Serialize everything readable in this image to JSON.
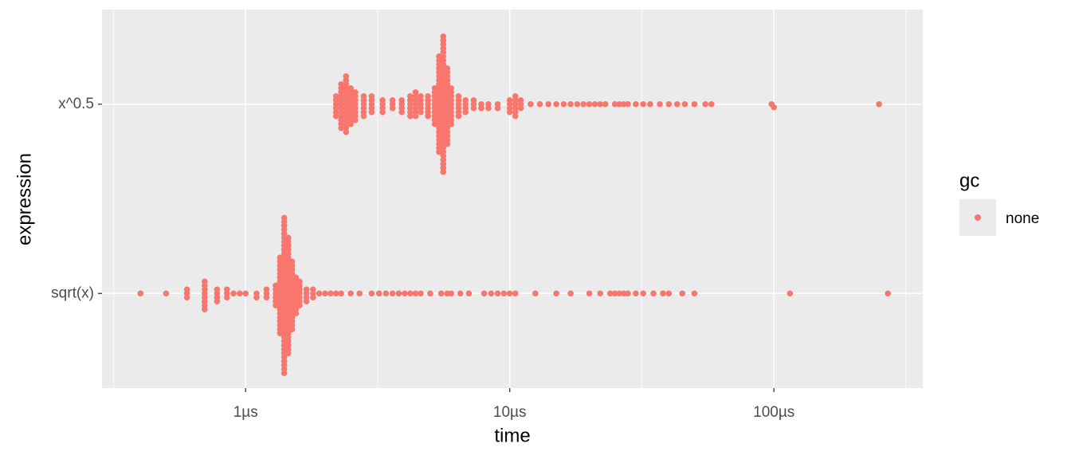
{
  "chart_data": {
    "type": "beeswarm",
    "x_label": "time",
    "y_label": "expression",
    "categories": [
      "sqrt(x)",
      "x^0.5"
    ],
    "legend_title": "gc",
    "xlog": true,
    "xlim": [
      0.286,
      366
    ],
    "xticks": [
      {
        "value": 1,
        "label": "1µs"
      },
      {
        "value": 10,
        "label": "10µs"
      },
      {
        "value": 100,
        "label": "100µs"
      }
    ],
    "xminorticks": [
      0.316,
      3.16,
      31.6,
      316
    ],
    "grid": true,
    "series": [
      {
        "name": "none",
        "color": "#F8766D",
        "values": [
          [
            0.4,
            0.5,
            0.6,
            0.6,
            0.6,
            0.7,
            0.7,
            0.7,
            0.7,
            0.7,
            0.7,
            0.7,
            0.7,
            0.78,
            0.78,
            0.78,
            0.78,
            0.85,
            0.85,
            0.85,
            0.9,
            0.95,
            1.0,
            1.1,
            1.1,
            1.2,
            1.2,
            1.2,
            1.3,
            1.3,
            1.3,
            1.3,
            1.3,
            1.3,
            1.35,
            1.35,
            1.35,
            1.35,
            1.35,
            1.35,
            1.35,
            1.35,
            1.35,
            1.35,
            1.35,
            1.35,
            1.35,
            1.35,
            1.35,
            1.35,
            1.35,
            1.35,
            1.35,
            1.35,
            1.4,
            1.4,
            1.4,
            1.4,
            1.4,
            1.4,
            1.4,
            1.4,
            1.4,
            1.4,
            1.4,
            1.4,
            1.4,
            1.4,
            1.4,
            1.4,
            1.4,
            1.4,
            1.4,
            1.4,
            1.4,
            1.4,
            1.4,
            1.4,
            1.4,
            1.4,
            1.4,
            1.4,
            1.4,
            1.4,
            1.4,
            1.4,
            1.4,
            1.4,
            1.4,
            1.4,
            1.4,
            1.4,
            1.4,
            1.4,
            1.45,
            1.45,
            1.45,
            1.45,
            1.45,
            1.45,
            1.45,
            1.45,
            1.45,
            1.45,
            1.45,
            1.45,
            1.45,
            1.45,
            1.45,
            1.45,
            1.45,
            1.45,
            1.45,
            1.45,
            1.45,
            1.45,
            1.45,
            1.45,
            1.45,
            1.45,
            1.45,
            1.45,
            1.45,
            1.45,
            1.5,
            1.5,
            1.5,
            1.5,
            1.5,
            1.5,
            1.5,
            1.5,
            1.5,
            1.5,
            1.5,
            1.5,
            1.5,
            1.5,
            1.5,
            1.5,
            1.5,
            1.5,
            1.55,
            1.55,
            1.55,
            1.55,
            1.55,
            1.55,
            1.55,
            1.55,
            1.55,
            1.55,
            1.6,
            1.6,
            1.6,
            1.6,
            1.6,
            1.6,
            1.6,
            1.7,
            1.7,
            1.7,
            1.7,
            1.8,
            1.8,
            1.8,
            1.9,
            2.0,
            2.1,
            2.2,
            2.3,
            2.5,
            2.7,
            3.0,
            3.2,
            3.4,
            3.6,
            3.8,
            4.0,
            4.2,
            4.4,
            4.6,
            5.0,
            5.5,
            5.8,
            6.0,
            6.5,
            7.0,
            8.0,
            8.5,
            9.0,
            9.5,
            10.0,
            10.5,
            12.5,
            15,
            17,
            20,
            22,
            24,
            25,
            26,
            27,
            28,
            30,
            32,
            35,
            38,
            40,
            45,
            50,
            115,
            270
          ],
          [
            2.2,
            2.2,
            2.2,
            2.2,
            2.2,
            2.2,
            2.3,
            2.3,
            2.3,
            2.3,
            2.3,
            2.3,
            2.3,
            2.3,
            2.3,
            2.3,
            2.3,
            2.3,
            2.4,
            2.4,
            2.4,
            2.4,
            2.4,
            2.4,
            2.4,
            2.4,
            2.4,
            2.4,
            2.4,
            2.4,
            2.4,
            2.4,
            2.4,
            2.5,
            2.5,
            2.5,
            2.5,
            2.5,
            2.5,
            2.5,
            2.5,
            2.5,
            2.5,
            2.6,
            2.6,
            2.6,
            2.6,
            2.6,
            2.6,
            2.6,
            2.6,
            2.8,
            2.8,
            2.8,
            2.8,
            2.8,
            2.8,
            3.0,
            3.0,
            3.0,
            3.0,
            3.0,
            3.3,
            3.3,
            3.3,
            3.3,
            3.6,
            3.6,
            3.6,
            3.9,
            3.9,
            3.9,
            3.9,
            4.2,
            4.2,
            4.2,
            4.2,
            4.2,
            4.2,
            4.4,
            4.4,
            4.4,
            4.4,
            4.4,
            4.4,
            4.4,
            4.6,
            4.6,
            4.6,
            4.6,
            4.6,
            4.9,
            4.9,
            4.9,
            4.9,
            4.9,
            4.9,
            5.2,
            5.2,
            5.2,
            5.2,
            5.2,
            5.2,
            5.2,
            5.2,
            5.2,
            5.2,
            5.4,
            5.4,
            5.4,
            5.4,
            5.4,
            5.4,
            5.4,
            5.4,
            5.4,
            5.4,
            5.4,
            5.4,
            5.4,
            5.4,
            5.4,
            5.4,
            5.4,
            5.4,
            5.4,
            5.4,
            5.4,
            5.4,
            5.4,
            5.4,
            5.4,
            5.6,
            5.6,
            5.6,
            5.6,
            5.6,
            5.6,
            5.6,
            5.6,
            5.6,
            5.6,
            5.6,
            5.6,
            5.6,
            5.6,
            5.6,
            5.6,
            5.6,
            5.6,
            5.6,
            5.6,
            5.6,
            5.6,
            5.6,
            5.6,
            5.6,
            5.6,
            5.6,
            5.6,
            5.6,
            5.6,
            5.6,
            5.6,
            5.6,
            5.6,
            5.6,
            5.8,
            5.8,
            5.8,
            5.8,
            5.8,
            5.8,
            5.8,
            5.8,
            5.8,
            5.8,
            5.8,
            5.8,
            5.8,
            5.8,
            5.8,
            5.8,
            5.8,
            5.8,
            5.8,
            5.8,
            6.0,
            6.0,
            6.0,
            6.0,
            6.0,
            6.0,
            6.0,
            6.0,
            6.0,
            6.0,
            6.4,
            6.4,
            6.4,
            6.4,
            6.4,
            6.4,
            6.8,
            6.8,
            6.8,
            6.8,
            7.3,
            7.3,
            7.3,
            7.8,
            7.8,
            8.3,
            8.3,
            9,
            9,
            10,
            10,
            10,
            10,
            10.5,
            10.5,
            10.5,
            10.5,
            10.5,
            10.5,
            11,
            11,
            11,
            12,
            13,
            14,
            15,
            16,
            17,
            18,
            19,
            20,
            21,
            22,
            23,
            25,
            26,
            27,
            28,
            30,
            32,
            34,
            37,
            40,
            43,
            46,
            50,
            55,
            58,
            98,
            100,
            250
          ]
        ]
      }
    ]
  }
}
